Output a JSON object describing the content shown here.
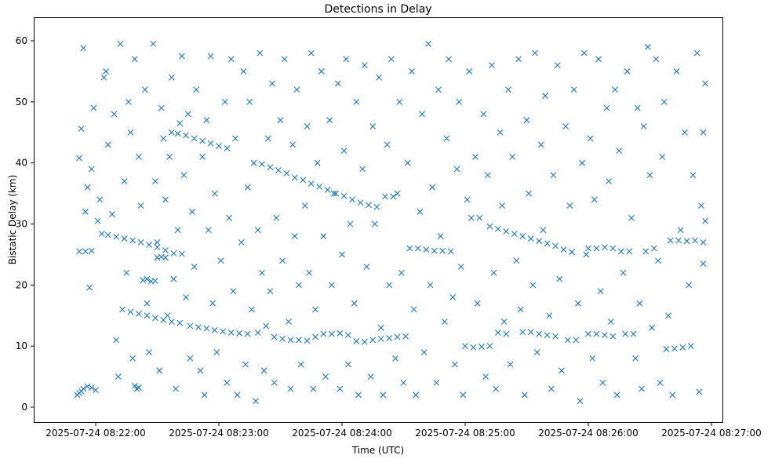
{
  "chart_data": {
    "type": "scatter",
    "title": "Detections in Delay",
    "xlabel": "Time (UTC)",
    "ylabel": "Bistatic Delay (km)",
    "x_unit": "seconds after 2025-07-24 08:21:00 UTC",
    "xlim": [
      30,
      365
    ],
    "ylim": [
      -2.5,
      62.5
    ],
    "grid": false,
    "marker": "x",
    "color": "#1f77b4",
    "x_ticks": [
      {
        "value": 60,
        "label": "2025-07-24 08:22:00"
      },
      {
        "value": 120,
        "label": "2025-07-24 08:23:00"
      },
      {
        "value": 180,
        "label": "2025-07-24 08:24:00"
      },
      {
        "value": 240,
        "label": "2025-07-24 08:25:00"
      },
      {
        "value": 300,
        "label": "2025-07-24 08:26:00"
      },
      {
        "value": 360,
        "label": "2025-07-24 08:27:00"
      }
    ],
    "y_ticks": [
      {
        "value": 0,
        "label": "0"
      },
      {
        "value": 10,
        "label": "10"
      },
      {
        "value": 20,
        "label": "20"
      },
      {
        "value": 30,
        "label": "30"
      },
      {
        "value": 40,
        "label": "40"
      },
      {
        "value": 50,
        "label": "50"
      },
      {
        "value": 60,
        "label": "60"
      }
    ],
    "tracks": [
      [
        [
          52,
          25.5
        ],
        [
          55,
          25.5
        ],
        [
          58,
          25.6
        ],
        [
          63,
          28.4
        ],
        [
          66,
          28.2
        ],
        [
          70,
          27.9
        ],
        [
          74,
          27.6
        ],
        [
          78,
          27.3
        ],
        [
          82,
          27
        ],
        [
          86,
          26.6
        ],
        [
          90,
          26.2
        ],
        [
          94,
          25.7
        ],
        [
          98,
          25.2
        ],
        [
          102,
          25.1
        ]
      ],
      [
        [
          73,
          16
        ],
        [
          77,
          15.6
        ],
        [
          81,
          15.3
        ],
        [
          85,
          15
        ],
        [
          89,
          14.6
        ],
        [
          93,
          14.3
        ],
        [
          97,
          14
        ],
        [
          101,
          13.8
        ],
        [
          106,
          13.3
        ],
        [
          110,
          13.1
        ],
        [
          114,
          12.9
        ],
        [
          118,
          12.6
        ],
        [
          122,
          12.4
        ],
        [
          126,
          12.2
        ],
        [
          130,
          12.1
        ],
        [
          134,
          12
        ],
        [
          139,
          12.2
        ],
        [
          143,
          13.3
        ],
        [
          147,
          11.5
        ],
        [
          151,
          11.2
        ],
        [
          155,
          11
        ],
        [
          159,
          11
        ],
        [
          163,
          10.9
        ],
        [
          167,
          11.5
        ],
        [
          171,
          12
        ],
        [
          175,
          12
        ],
        [
          179,
          12.1
        ],
        [
          183,
          11.8
        ],
        [
          187,
          10.8
        ],
        [
          191,
          10.7
        ],
        [
          195,
          11
        ],
        [
          199,
          11.2
        ],
        [
          203,
          11.3
        ],
        [
          207,
          11.5
        ],
        [
          211,
          11.6
        ]
      ],
      [
        [
          93,
          44
        ],
        [
          97,
          45
        ],
        [
          101,
          46.5
        ],
        [
          105,
          48
        ],
        [
          100,
          44.8
        ],
        [
          104,
          44.5
        ],
        [
          108,
          44
        ],
        [
          112,
          43.6
        ],
        [
          116,
          43.2
        ],
        [
          120,
          42.8
        ],
        [
          124,
          42.4
        ],
        [
          137,
          40
        ],
        [
          141,
          39.8
        ],
        [
          145,
          39.3
        ],
        [
          149,
          38.8
        ],
        [
          153,
          38.3
        ],
        [
          157,
          37.6
        ],
        [
          161,
          37.2
        ],
        [
          165,
          36.6
        ],
        [
          169,
          36.1
        ],
        [
          173,
          35.6
        ],
        [
          177,
          35
        ],
        [
          181,
          34.6
        ],
        [
          185,
          34
        ],
        [
          189,
          33.5
        ],
        [
          193,
          33.1
        ],
        [
          197,
          32.8
        ],
        [
          201,
          34.5
        ],
        [
          205,
          34.5
        ],
        [
          213,
          26
        ],
        [
          217,
          26
        ],
        [
          221,
          25.8
        ],
        [
          225,
          25.6
        ],
        [
          229,
          25.6
        ],
        [
          233,
          25.5
        ],
        [
          243,
          31
        ],
        [
          247,
          31
        ],
        [
          252,
          29.6
        ],
        [
          256,
          29.2
        ],
        [
          260,
          28.8
        ],
        [
          264,
          28.4
        ],
        [
          268,
          28
        ],
        [
          272,
          27.6
        ],
        [
          276,
          27.2
        ],
        [
          280,
          26.8
        ],
        [
          284,
          26.4
        ],
        [
          288,
          25.8
        ],
        [
          292,
          25.4
        ],
        [
          300,
          26
        ],
        [
          304,
          26
        ],
        [
          308,
          26.2
        ],
        [
          312,
          26
        ],
        [
          316,
          25.5
        ],
        [
          320,
          25.5
        ],
        [
          328,
          25.5
        ],
        [
          332,
          26
        ],
        [
          340,
          27.3
        ],
        [
          344,
          27.3
        ],
        [
          348,
          27.2
        ],
        [
          352,
          27.3
        ],
        [
          356,
          27
        ]
      ],
      [
        [
          240,
          10
        ],
        [
          244,
          9.8
        ],
        [
          248,
          9.9
        ],
        [
          252,
          10
        ],
        [
          256,
          12.2
        ],
        [
          260,
          12
        ],
        [
          268,
          12.3
        ],
        [
          272,
          12.3
        ],
        [
          276,
          12
        ],
        [
          280,
          11.8
        ],
        [
          284,
          11.6
        ],
        [
          290,
          11
        ],
        [
          294,
          11
        ],
        [
          300,
          12
        ],
        [
          304,
          12
        ],
        [
          308,
          11.8
        ],
        [
          312,
          11.6
        ],
        [
          318,
          12
        ],
        [
          322,
          12
        ],
        [
          338,
          9.5
        ],
        [
          342,
          9.6
        ],
        [
          346,
          9.8
        ],
        [
          350,
          10
        ]
      ],
      [
        [
          51,
          2
        ],
        [
          52,
          2.3
        ],
        [
          53,
          2.6
        ],
        [
          54,
          3
        ],
        [
          56,
          3.4
        ],
        [
          58,
          3.2
        ],
        [
          60,
          2.8
        ],
        [
          79,
          3.5
        ],
        [
          80,
          3
        ],
        [
          81,
          3.2
        ],
        [
          83,
          20.8
        ],
        [
          85,
          21
        ],
        [
          87,
          20.6
        ],
        [
          89,
          20.7
        ],
        [
          90,
          24.5
        ],
        [
          92,
          24.6
        ],
        [
          94,
          24.5
        ]
      ]
    ],
    "scatter": [
      [
        52,
        40.8
      ],
      [
        53,
        45.6
      ],
      [
        54,
        58.8
      ],
      [
        55,
        32
      ],
      [
        56,
        36
      ],
      [
        57,
        19.6
      ],
      [
        58,
        39
      ],
      [
        59,
        49
      ],
      [
        61,
        30.5
      ],
      [
        62,
        34
      ],
      [
        64,
        54
      ],
      [
        65,
        55
      ],
      [
        66,
        43
      ],
      [
        68,
        31.6
      ],
      [
        69,
        48
      ],
      [
        70,
        11
      ],
      [
        71,
        5
      ],
      [
        72,
        59.5
      ],
      [
        74,
        37
      ],
      [
        75,
        22
      ],
      [
        76,
        50
      ],
      [
        77,
        45
      ],
      [
        78,
        8
      ],
      [
        79,
        57
      ],
      [
        81,
        41
      ],
      [
        82,
        33
      ],
      [
        84,
        52
      ],
      [
        85,
        17
      ],
      [
        86,
        9
      ],
      [
        88,
        59.5
      ],
      [
        89,
        37
      ],
      [
        90,
        27
      ],
      [
        91,
        6
      ],
      [
        92,
        49
      ],
      [
        94,
        34
      ],
      [
        95,
        15
      ],
      [
        96,
        41
      ],
      [
        97,
        54
      ],
      [
        98,
        21
      ],
      [
        99,
        3
      ],
      [
        100,
        29
      ],
      [
        102,
        57.5
      ],
      [
        103,
        38
      ],
      [
        104,
        18
      ],
      [
        106,
        8
      ],
      [
        107,
        32
      ],
      [
        108,
        23
      ],
      [
        109,
        52
      ],
      [
        111,
        6
      ],
      [
        112,
        41
      ],
      [
        113,
        2
      ],
      [
        114,
        47
      ],
      [
        115,
        29
      ],
      [
        116,
        57.5
      ],
      [
        117,
        17
      ],
      [
        118,
        35
      ],
      [
        119,
        9
      ],
      [
        121,
        24
      ],
      [
        123,
        50
      ],
      [
        124,
        4
      ],
      [
        125,
        31
      ],
      [
        126,
        57
      ],
      [
        127,
        19
      ],
      [
        128,
        44
      ],
      [
        129,
        2
      ],
      [
        131,
        27
      ],
      [
        132,
        55
      ],
      [
        133,
        7
      ],
      [
        134,
        36
      ],
      [
        135,
        50
      ],
      [
        136,
        16
      ],
      [
        138,
        1
      ],
      [
        139,
        29
      ],
      [
        140,
        58
      ],
      [
        141,
        22
      ],
      [
        142,
        6
      ],
      [
        144,
        44
      ],
      [
        145,
        19
      ],
      [
        146,
        53
      ],
      [
        147,
        4
      ],
      [
        148,
        31
      ],
      [
        150,
        47
      ],
      [
        151,
        24
      ],
      [
        152,
        57
      ],
      [
        154,
        14
      ],
      [
        155,
        3
      ],
      [
        156,
        43
      ],
      [
        157,
        28
      ],
      [
        158,
        52
      ],
      [
        159,
        20
      ],
      [
        160,
        7
      ],
      [
        162,
        33
      ],
      [
        163,
        46
      ],
      [
        164,
        22
      ],
      [
        165,
        58
      ],
      [
        166,
        3
      ],
      [
        167,
        16
      ],
      [
        168,
        40
      ],
      [
        170,
        55
      ],
      [
        171,
        28
      ],
      [
        172,
        5
      ],
      [
        174,
        47
      ],
      [
        175,
        20
      ],
      [
        176,
        35
      ],
      [
        178,
        53
      ],
      [
        179,
        3
      ],
      [
        180,
        25
      ],
      [
        181,
        42
      ],
      [
        182,
        57
      ],
      [
        183,
        7
      ],
      [
        184,
        30
      ],
      [
        186,
        17
      ],
      [
        187,
        50
      ],
      [
        188,
        2
      ],
      [
        190,
        39
      ],
      [
        191,
        56
      ],
      [
        192,
        23
      ],
      [
        194,
        5
      ],
      [
        195,
        46
      ],
      [
        196,
        30
      ],
      [
        198,
        54
      ],
      [
        199,
        13
      ],
      [
        200,
        2
      ],
      [
        202,
        43
      ],
      [
        203,
        20
      ],
      [
        204,
        57
      ],
      [
        206,
        8
      ],
      [
        207,
        35
      ],
      [
        208,
        50
      ],
      [
        209,
        22
      ],
      [
        210,
        4
      ],
      [
        212,
        40
      ],
      [
        214,
        55
      ],
      [
        215,
        16
      ],
      [
        216,
        2
      ],
      [
        218,
        32
      ],
      [
        219,
        48
      ],
      [
        220,
        9
      ],
      [
        222,
        59.5
      ],
      [
        223,
        20
      ],
      [
        224,
        36
      ],
      [
        226,
        4
      ],
      [
        227,
        52
      ],
      [
        228,
        28
      ],
      [
        230,
        14
      ],
      [
        231,
        44
      ],
      [
        232,
        57
      ],
      [
        234,
        18
      ],
      [
        235,
        7
      ],
      [
        236,
        39
      ],
      [
        237,
        50
      ],
      [
        238,
        23
      ],
      [
        239,
        2
      ],
      [
        241,
        34
      ],
      [
        242,
        55
      ],
      [
        245,
        41
      ],
      [
        246,
        17
      ],
      [
        249,
        48
      ],
      [
        250,
        5
      ],
      [
        251,
        38
      ],
      [
        253,
        56
      ],
      [
        254,
        22
      ],
      [
        255,
        3
      ],
      [
        257,
        45
      ],
      [
        258,
        33
      ],
      [
        259,
        14
      ],
      [
        261,
        52
      ],
      [
        262,
        7
      ],
      [
        263,
        41
      ],
      [
        265,
        24
      ],
      [
        266,
        57
      ],
      [
        267,
        16
      ],
      [
        269,
        2
      ],
      [
        270,
        47
      ],
      [
        271,
        35
      ],
      [
        273,
        20
      ],
      [
        274,
        58
      ],
      [
        275,
        9
      ],
      [
        277,
        43
      ],
      [
        278,
        29
      ],
      [
        279,
        51
      ],
      [
        281,
        15
      ],
      [
        282,
        3
      ],
      [
        283,
        38
      ],
      [
        285,
        56
      ],
      [
        286,
        21
      ],
      [
        287,
        6
      ],
      [
        289,
        46
      ],
      [
        291,
        33
      ],
      [
        293,
        52
      ],
      [
        295,
        17
      ],
      [
        296,
        1
      ],
      [
        297,
        40
      ],
      [
        298,
        58
      ],
      [
        299,
        25
      ],
      [
        301,
        44
      ],
      [
        302,
        8
      ],
      [
        303,
        34
      ],
      [
        305,
        57
      ],
      [
        306,
        19
      ],
      [
        307,
        4
      ],
      [
        309,
        49
      ],
      [
        310,
        37
      ],
      [
        311,
        14
      ],
      [
        313,
        52
      ],
      [
        314,
        2
      ],
      [
        315,
        42
      ],
      [
        317,
        22
      ],
      [
        319,
        55
      ],
      [
        321,
        31
      ],
      [
        323,
        8
      ],
      [
        324,
        49
      ],
      [
        325,
        17
      ],
      [
        326,
        3
      ],
      [
        327,
        46
      ],
      [
        329,
        59
      ],
      [
        330,
        38
      ],
      [
        331,
        13
      ],
      [
        333,
        57
      ],
      [
        334,
        24
      ],
      [
        335,
        4
      ],
      [
        336,
        41
      ],
      [
        337,
        50
      ],
      [
        339,
        15
      ],
      [
        341,
        2
      ],
      [
        343,
        55
      ],
      [
        345,
        29
      ],
      [
        347,
        45
      ],
      [
        349,
        20
      ],
      [
        351,
        38
      ],
      [
        353,
        58
      ],
      [
        354,
        2.5
      ],
      [
        355,
        33
      ],
      [
        356,
        23.5
      ],
      [
        356,
        45
      ],
      [
        357,
        30.5
      ],
      [
        357,
        53
      ]
    ]
  }
}
